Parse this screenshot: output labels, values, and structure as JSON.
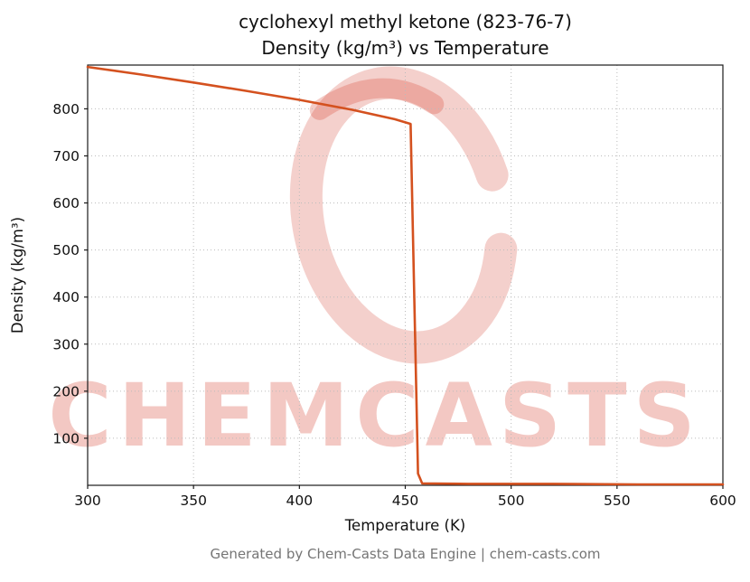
{
  "page": {
    "footer": "Generated by Chem-Casts Data Engine | chem-casts.com"
  },
  "watermark": {
    "text": "CHEMCASTS",
    "color": "#d33928"
  },
  "chart_data": {
    "type": "line",
    "title": "cyclohexyl methyl ketone (823-76-7)",
    "subtitle": "Density (kg/m³) vs Temperature",
    "xlabel": "Temperature (K)",
    "ylabel": "Density (kg/m³)",
    "xlim": [
      300,
      600
    ],
    "ylim": [
      0,
      893
    ],
    "x_ticks": [
      300,
      350,
      400,
      450,
      500,
      550,
      600
    ],
    "y_ticks": [
      100,
      200,
      300,
      400,
      500,
      600,
      700,
      800
    ],
    "grid": true,
    "legend": false,
    "line_color": "#d4511f",
    "series": [
      {
        "name": "Density (kg/m³)",
        "x": [
          300,
          325,
          350,
          375,
          400,
          425,
          445,
          452.5,
          456,
          458,
          480,
          520,
          560,
          600
        ],
        "y": [
          889,
          873,
          856,
          838,
          819,
          798,
          778,
          768,
          25,
          4,
          3,
          3,
          2,
          2
        ]
      }
    ]
  }
}
